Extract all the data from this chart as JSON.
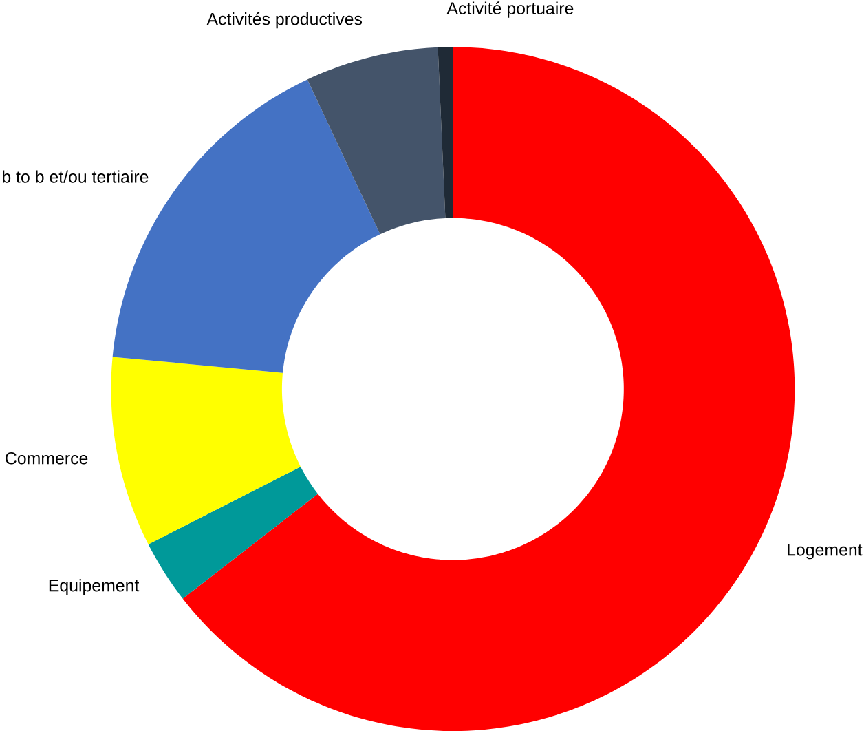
{
  "chart_data": {
    "type": "donut",
    "categories": [
      "Logement",
      "Equipement",
      "Commerce",
      "b to b et/ou tertiaire",
      "Activités productives",
      "Activité portuaire"
    ],
    "values": [
      64.5,
      3,
      9,
      16.5,
      6.3,
      0.7
    ],
    "colors": [
      "#ff0000",
      "#009999",
      "#ffff00",
      "#4472c4",
      "#44546a",
      "#1f2a36"
    ]
  }
}
